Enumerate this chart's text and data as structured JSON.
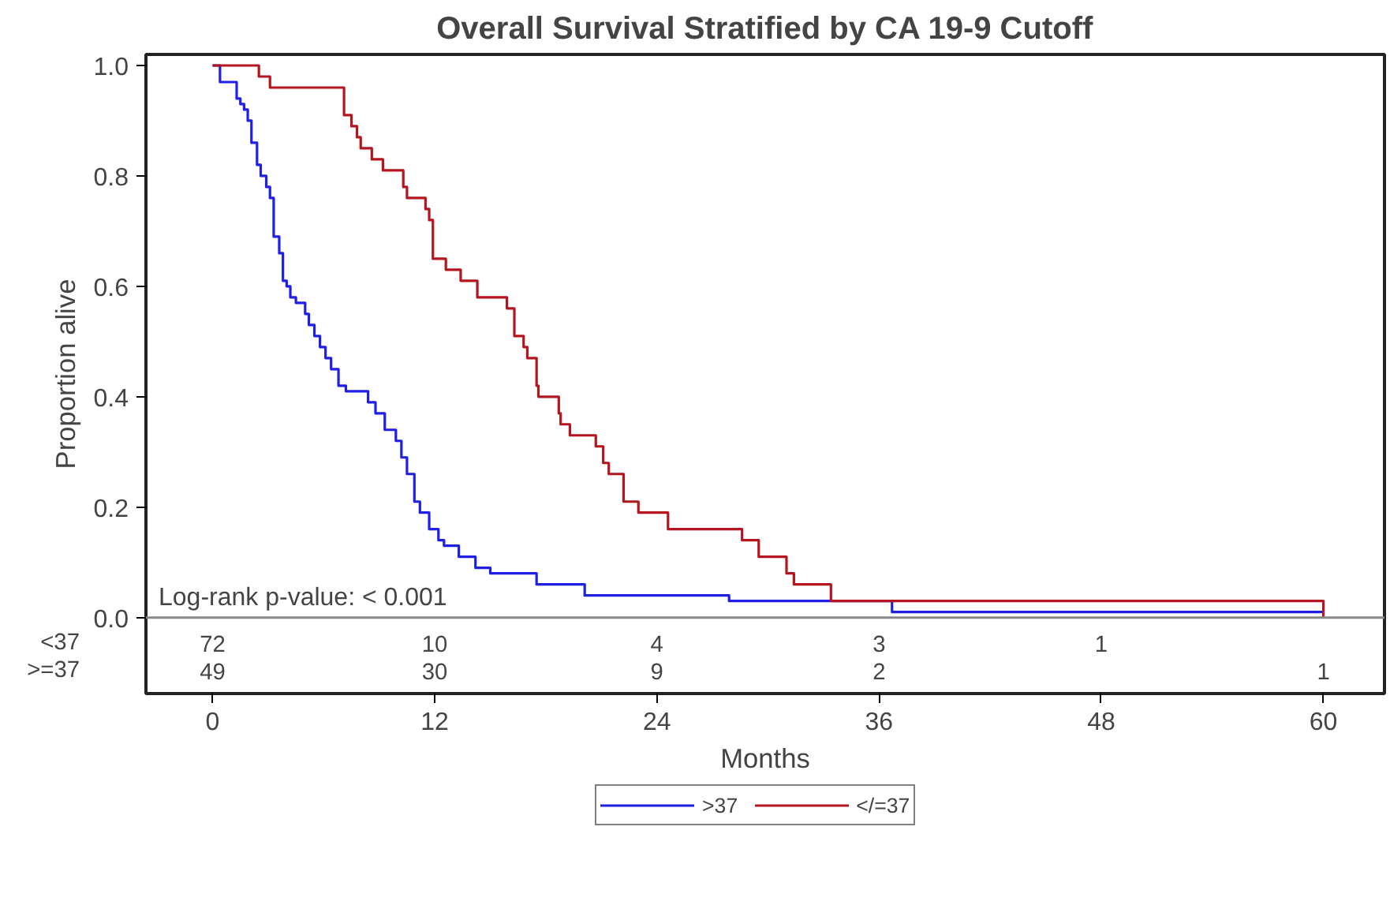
{
  "chart_data": {
    "type": "step",
    "title": "Overall Survival Stratified by CA 19-9 Cutoff",
    "xlabel": "Months",
    "ylabel": "Proportion alive",
    "xlim": [
      -3.6,
      63.3
    ],
    "ylim": [
      0,
      1.02
    ],
    "xticks": [
      0,
      12,
      24,
      36,
      48,
      60
    ],
    "yticks": [
      {
        "value": 0,
        "label": "0.0"
      },
      {
        "value": 0.2,
        "label": "0.2"
      },
      {
        "value": 0.4,
        "label": "0.4"
      },
      {
        "value": 0.6,
        "label": "0.6"
      },
      {
        "value": 0.8,
        "label": "0.8"
      },
      {
        "value": 1,
        "label": "1.0"
      }
    ],
    "grid": false,
    "legend": "bottom",
    "marker": "none",
    "line_style": "solid",
    "series": [
      {
        "name": ">37",
        "color": "#1f1fe6",
        "x": [
          0,
          0.4,
          1.3,
          1.5,
          1.7,
          1.9,
          2.1,
          2.4,
          2.6,
          2.9,
          3.1,
          3.3,
          3.6,
          3.8,
          4.0,
          4.2,
          4.5,
          5.0,
          5.2,
          5.5,
          5.8,
          6.1,
          6.4,
          6.8,
          7.2,
          8.4,
          8.8,
          9.3,
          9.9,
          10.2,
          10.5,
          10.9,
          11.2,
          11.7,
          12.2,
          12.5,
          13.3,
          14.2,
          15.0,
          17.5,
          20.1,
          27.9,
          36.7,
          60
        ],
        "values": [
          1.0,
          0.97,
          0.94,
          0.93,
          0.92,
          0.9,
          0.86,
          0.82,
          0.8,
          0.78,
          0.76,
          0.69,
          0.66,
          0.61,
          0.6,
          0.58,
          0.57,
          0.55,
          0.53,
          0.51,
          0.49,
          0.47,
          0.45,
          0.42,
          0.41,
          0.39,
          0.37,
          0.34,
          0.32,
          0.29,
          0.26,
          0.21,
          0.19,
          0.16,
          0.14,
          0.13,
          0.11,
          0.09,
          0.08,
          0.06,
          0.04,
          0.03,
          0.01,
          0.01
        ]
      },
      {
        "name": "</=37",
        "color": "#b3161e",
        "x": [
          0,
          2.5,
          3.1,
          7.1,
          7.5,
          7.8,
          8.0,
          8.6,
          9.2,
          10.3,
          10.5,
          11.5,
          11.7,
          11.9,
          12.6,
          13.4,
          14.3,
          15.9,
          16.3,
          16.8,
          17.0,
          17.5,
          17.6,
          18.7,
          18.8,
          19.3,
          20.7,
          21.1,
          21.4,
          22.2,
          23.0,
          24.6,
          28.6,
          29.5,
          31.0,
          31.4,
          33.4,
          60,
          60
        ],
        "values": [
          1.0,
          0.98,
          0.96,
          0.91,
          0.89,
          0.87,
          0.85,
          0.83,
          0.81,
          0.78,
          0.76,
          0.74,
          0.72,
          0.65,
          0.63,
          0.61,
          0.58,
          0.56,
          0.51,
          0.49,
          0.47,
          0.42,
          0.4,
          0.37,
          0.35,
          0.33,
          0.31,
          0.28,
          0.26,
          0.21,
          0.19,
          0.16,
          0.14,
          0.11,
          0.08,
          0.06,
          0.03,
          0.03,
          0
        ]
      }
    ],
    "annotations": [
      "Log-rank p-value: < 0.001",
      [
        "<37",
        "72",
        "10",
        "4",
        "3",
        "1",
        null
      ],
      [
        ">=37",
        "49",
        "30",
        "9",
        "2",
        null,
        "1"
      ]
    ]
  }
}
